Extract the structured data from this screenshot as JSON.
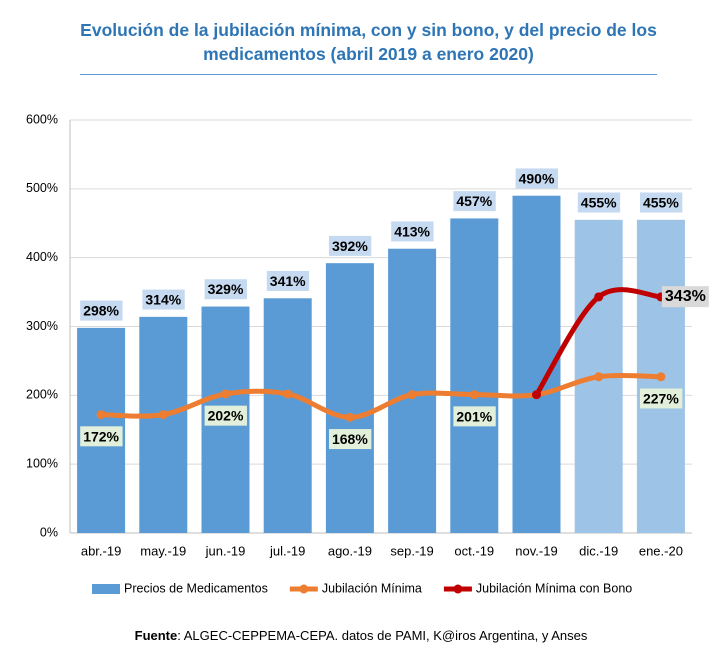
{
  "chart_data": {
    "type": "bar",
    "title": "Evolución de la jubilación mínima, con y sin bono, y del precio de los medicamentos (abril 2019 a enero 2020)",
    "categories": [
      "abr.-19",
      "may.-19",
      "jun.-19",
      "jul.-19",
      "ago.-19",
      "sep.-19",
      "oct.-19",
      "nov.-19",
      "dic.-19",
      "ene.-20"
    ],
    "series": [
      {
        "name": "Precios de Medicamentos",
        "type": "bar",
        "color": "#5b9bd5",
        "colors": [
          "#5b9bd5",
          "#5b9bd5",
          "#5b9bd5",
          "#5b9bd5",
          "#5b9bd5",
          "#5b9bd5",
          "#5b9bd5",
          "#5b9bd5",
          "#9dc3e6",
          "#9dc3e6"
        ],
        "values": [
          298,
          314,
          329,
          341,
          392,
          413,
          457,
          490,
          455,
          455
        ],
        "value_labels": [
          "298%",
          "314%",
          "329%",
          "341%",
          "392%",
          "413%",
          "457%",
          "490%",
          "455%",
          "455%"
        ]
      },
      {
        "name": "Jubilación Mínima",
        "type": "line",
        "color": "#ed7d31",
        "values": [
          172,
          172,
          202,
          202,
          168,
          201,
          201,
          201,
          227,
          227
        ],
        "value_labels": [
          "172%",
          null,
          "202%",
          null,
          "168%",
          null,
          "201%",
          null,
          null,
          "227%"
        ]
      },
      {
        "name": "Jubilación Mínima con Bono",
        "type": "line",
        "color": "#c00000",
        "values": [
          null,
          null,
          null,
          null,
          null,
          null,
          null,
          201,
          343,
          343
        ],
        "value_labels": [
          null,
          null,
          null,
          null,
          null,
          null,
          null,
          null,
          null,
          "343%"
        ]
      }
    ],
    "ylim": [
      0,
      600
    ],
    "yticks": [
      {
        "value": 0,
        "label": "0%"
      },
      {
        "value": 100,
        "label": "100%"
      },
      {
        "value": 200,
        "label": "200%"
      },
      {
        "value": 300,
        "label": "300%"
      },
      {
        "value": 400,
        "label": "400%"
      },
      {
        "value": 500,
        "label": "500%"
      },
      {
        "value": 600,
        "label": "600%"
      }
    ],
    "grid": true,
    "legend": "bottom",
    "source_label": "Fuente",
    "source": ": ALGEC-CEPPEMA-CEPA. datos de PAMI, K@iros Argentina, y Anses"
  }
}
